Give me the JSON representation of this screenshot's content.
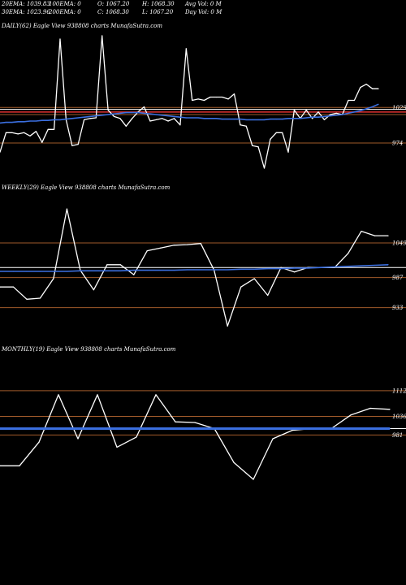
{
  "header": {
    "row1": [
      "20EMA: 1039.83",
      "100EMA: 0",
      "O: 1067.20",
      "H: 1068.30",
      "Avg Vol: 0  M"
    ],
    "row2": [
      "30EMA: 1023.96",
      "200EMA: 0",
      "C: 1068.30",
      "L: 1067.20",
      "Day Vol: 0  M"
    ]
  },
  "colors": {
    "background": "#000000",
    "price_line": "#ffffff",
    "ema_line": "#3b6fe0",
    "level_line": "#a05a2a",
    "red_level": "#e03030",
    "white_level": "#ffffff"
  },
  "chart_data": [
    {
      "type": "line",
      "title": "DAILY(62) Eagle  View  938808  charts MunafaSutra.com",
      "yticks": [
        1029,
        974
      ],
      "ylim": [
        925,
        1145
      ],
      "levels": {
        "brown": [
          1029,
          1018,
          974
        ],
        "red": [
          1022
        ],
        "white": [
          1026
        ]
      },
      "series": [
        {
          "role": "price",
          "values": [
            960,
            990,
            990,
            988,
            990,
            985,
            992,
            975,
            995,
            995,
            1135,
            1010,
            970,
            972,
            1010,
            1012,
            1013,
            1140,
            1025,
            1015,
            1012,
            1000,
            1012,
            1022,
            1030,
            1008,
            1010,
            1012,
            1008,
            1012,
            1002,
            1120,
            1040,
            1042,
            1040,
            1045,
            1045,
            1045,
            1042,
            1050,
            1002,
            1000,
            970,
            968,
            935,
            980,
            990,
            990,
            960,
            1025,
            1012,
            1025,
            1012,
            1022,
            1010,
            1018,
            1020,
            1018,
            1040,
            1040,
            1060,
            1065,
            1058,
            1058
          ]
        },
        {
          "role": "ema",
          "values": [
            1005,
            1006,
            1006,
            1007,
            1007,
            1008,
            1008,
            1009,
            1009,
            1010,
            1010,
            1011,
            1012,
            1013,
            1014,
            1015,
            1016,
            1017,
            1018,
            1019,
            1020,
            1021,
            1021,
            1021,
            1020,
            1019,
            1018,
            1017,
            1016,
            1015,
            1014,
            1013,
            1013,
            1013,
            1012,
            1012,
            1012,
            1011,
            1011,
            1011,
            1011,
            1010,
            1010,
            1010,
            1010,
            1011,
            1011,
            1011,
            1012,
            1012,
            1012,
            1013,
            1014,
            1014,
            1015,
            1016,
            1017,
            1018,
            1020,
            1022,
            1024,
            1027,
            1030,
            1034
          ]
        }
      ]
    },
    {
      "type": "line",
      "title": "WEEKLY(29) Eagle  View  938808  charts MunafaSutra.com",
      "yticks": [
        1049,
        987,
        933
      ],
      "ylim": [
        880,
        1135
      ],
      "levels": {
        "brown": [
          1049,
          987,
          933
        ],
        "white": [
          1005
        ],
        "red": []
      },
      "series": [
        {
          "role": "price",
          "values": [
            970,
            970,
            948,
            950,
            985,
            1110,
            1000,
            965,
            1010,
            1010,
            992,
            1035,
            1040,
            1045,
            1046,
            1048,
            1000,
            900,
            970,
            985,
            955,
            1005,
            997,
            1005,
            1005,
            1005,
            1030,
            1070,
            1062,
            1062
          ]
        },
        {
          "role": "ema",
          "values": [
            998,
            998,
            998,
            998,
            998,
            998,
            999,
            999,
            999,
            999,
            1000,
            1000,
            1000,
            1000,
            1001,
            1001,
            1001,
            1001,
            1002,
            1002,
            1003,
            1003,
            1004,
            1004,
            1005,
            1006,
            1007,
            1008,
            1009,
            1010
          ]
        }
      ]
    },
    {
      "type": "line",
      "title": "MONTHLY(19) Eagle  View  938808  charts MunafaSutra.com",
      "yticks": [
        1112,
        1036,
        981
      ],
      "ylim": [
        790,
        1210
      ],
      "levels": {
        "brown": [
          1112,
          1036,
          981
        ],
        "white": [
          1000
        ],
        "red": []
      },
      "series": [
        {
          "role": "price",
          "values": [
            890,
            890,
            960,
            1100,
            970,
            1100,
            945,
            975,
            1100,
            1020,
            1018,
            1000,
            900,
            850,
            970,
            995,
            1000,
            1000,
            1040,
            1060,
            1057
          ]
        },
        {
          "role": "ema",
          "values": [
            1000,
            1000,
            1000,
            1000,
            1000,
            1000,
            1000,
            1000,
            1000,
            1000,
            1000,
            1000,
            1000,
            1000,
            1000,
            1000,
            1000,
            1000,
            1000,
            1000,
            1000
          ]
        }
      ]
    }
  ]
}
